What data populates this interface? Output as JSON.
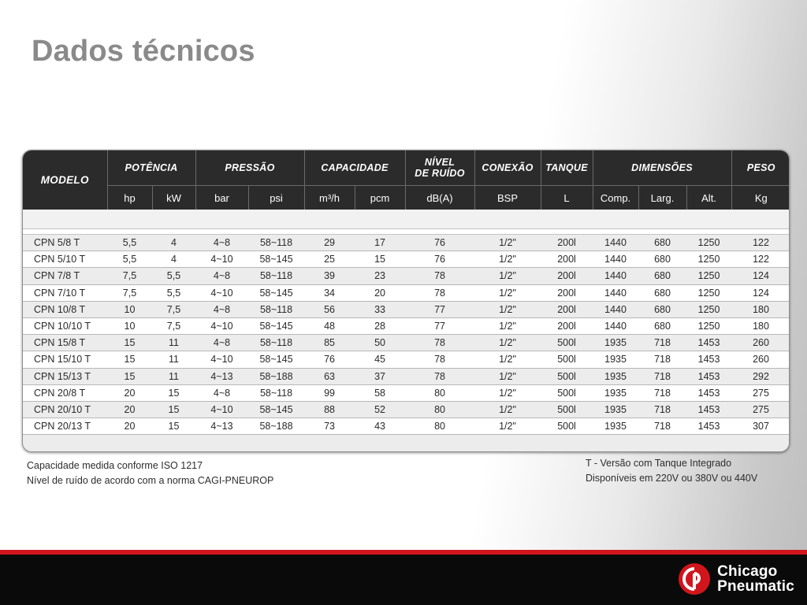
{
  "slide": {
    "title": "Dados técnicos"
  },
  "table": {
    "group_headers": {
      "modelo": "MODELO",
      "potencia": "POTÊNCIA",
      "pressao": "PRESSÃO",
      "capacidade": "CAPACIDADE",
      "nivel_ruido_1": "NÍVEL",
      "nivel_ruido_2": "DE RUÍDO",
      "conexao": "CONEXÃO",
      "tanque": "TANQUE",
      "dimensoes": "DIMENSÕES",
      "peso": "PESO"
    },
    "unit_headers": [
      "hp",
      "kW",
      "bar",
      "psi",
      "m³/h",
      "pcm",
      "dB(A)",
      "BSP",
      "L",
      "Comp.",
      "Larg.",
      "Alt.",
      "Kg"
    ],
    "rows": [
      [
        "CPN 5/8 T",
        "5,5",
        "4",
        "4~8",
        "58~118",
        "29",
        "17",
        "76",
        "1/2\"",
        "200l",
        "1440",
        "680",
        "1250",
        "122"
      ],
      [
        "CPN 5/10 T",
        "5,5",
        "4",
        "4~10",
        "58~145",
        "25",
        "15",
        "76",
        "1/2\"",
        "200l",
        "1440",
        "680",
        "1250",
        "122"
      ],
      [
        "CPN 7/8 T",
        "7,5",
        "5,5",
        "4~8",
        "58~118",
        "39",
        "23",
        "78",
        "1/2\"",
        "200l",
        "1440",
        "680",
        "1250",
        "124"
      ],
      [
        "CPN 7/10 T",
        "7,5",
        "5,5",
        "4~10",
        "58~145",
        "34",
        "20",
        "78",
        "1/2\"",
        "200l",
        "1440",
        "680",
        "1250",
        "124"
      ],
      [
        "CPN 10/8 T",
        "10",
        "7,5",
        "4~8",
        "58~118",
        "56",
        "33",
        "77",
        "1/2\"",
        "200l",
        "1440",
        "680",
        "1250",
        "180"
      ],
      [
        "CPN 10/10 T",
        "10",
        "7,5",
        "4~10",
        "58~145",
        "48",
        "28",
        "77",
        "1/2\"",
        "200l",
        "1440",
        "680",
        "1250",
        "180"
      ],
      [
        "CPN 15/8 T",
        "15",
        "11",
        "4~8",
        "58~118",
        "85",
        "50",
        "78",
        "1/2\"",
        "500l",
        "1935",
        "718",
        "1453",
        "260"
      ],
      [
        "CPN 15/10 T",
        "15",
        "11",
        "4~10",
        "58~145",
        "76",
        "45",
        "78",
        "1/2\"",
        "500l",
        "1935",
        "718",
        "1453",
        "260"
      ],
      [
        "CPN 15/13 T",
        "15",
        "11",
        "4~13",
        "58~188",
        "63",
        "37",
        "78",
        "1/2\"",
        "500l",
        "1935",
        "718",
        "1453",
        "292"
      ],
      [
        "CPN 20/8 T",
        "20",
        "15",
        "4~8",
        "58~118",
        "99",
        "58",
        "80",
        "1/2\"",
        "500l",
        "1935",
        "718",
        "1453",
        "275"
      ],
      [
        "CPN 20/10 T",
        "20",
        "15",
        "4~10",
        "58~145",
        "88",
        "52",
        "80",
        "1/2\"",
        "500l",
        "1935",
        "718",
        "1453",
        "275"
      ],
      [
        "CPN 20/13 T",
        "20",
        "15",
        "4~13",
        "58~188",
        "73",
        "43",
        "80",
        "1/2\"",
        "500l",
        "1935",
        "718",
        "1453",
        "307"
      ]
    ]
  },
  "notes": {
    "left": [
      "Capacidade medida conforme ISO 1217",
      "Nível de ruído de acordo com a norma CAGI-PNEUROP"
    ],
    "right": [
      "T - Versão com Tanque Integrado",
      "Disponíveis em 220V ou 380V ou 440V"
    ]
  },
  "footer": {
    "brand_line1": "Chicago",
    "brand_line2": "Pneumatic",
    "brand_color": "#d0161c",
    "logo_icon": "chicago-pneumatic-logo-icon"
  }
}
